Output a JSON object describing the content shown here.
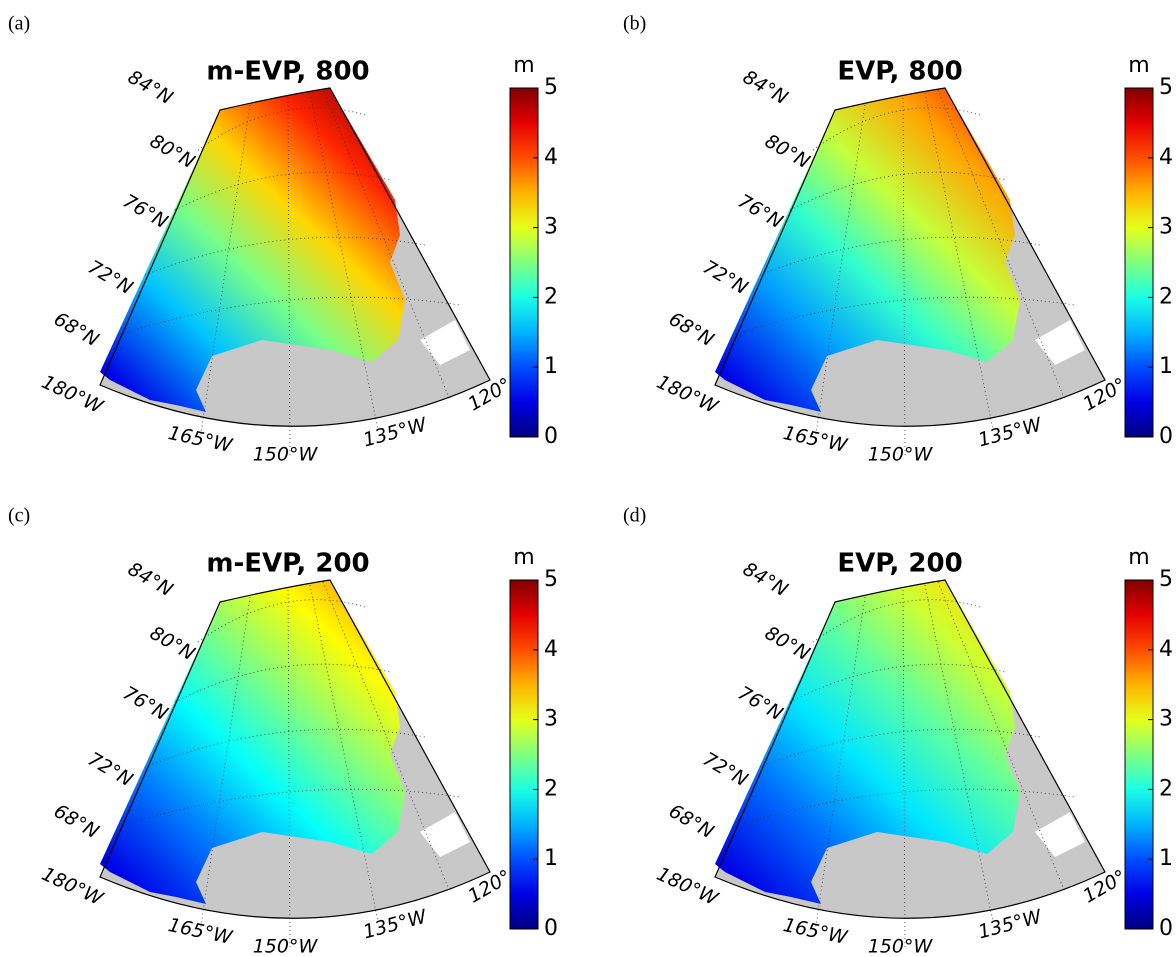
{
  "panels": [
    {
      "label": "(a)",
      "title": "m-EVP, 800",
      "lat_labels": [
        "84°N",
        "80°N",
        "76°N",
        "72°N",
        "68°N"
      ],
      "lon_labels": [
        "180°W",
        "165°W",
        "150°W",
        "135°W",
        "120°"
      ],
      "colorbar": {
        "label": "m",
        "colormap": "jet",
        "lim": [
          0,
          5
        ],
        "ticks": [
          0,
          1,
          2,
          3,
          4,
          5
        ]
      }
    },
    {
      "label": "(b)",
      "title": "EVP, 800",
      "lat_labels": [
        "84°N",
        "80°N",
        "76°N",
        "72°N",
        "68°N"
      ],
      "lon_labels": [
        "180°W",
        "165°W",
        "150°W",
        "135°W",
        "120°"
      ],
      "colorbar": {
        "label": "m",
        "colormap": "jet",
        "lim": [
          0,
          5
        ],
        "ticks": [
          0,
          1,
          2,
          3,
          4,
          5
        ]
      }
    },
    {
      "label": "(c)",
      "title": "m-EVP, 200",
      "lat_labels": [
        "84°N",
        "80°N",
        "76°N",
        "72°N",
        "68°N"
      ],
      "lon_labels": [
        "180°W",
        "165°W",
        "150°W",
        "135°W",
        "120°"
      ],
      "colorbar": {
        "label": "m",
        "colormap": "jet",
        "lim": [
          0,
          5
        ],
        "ticks": [
          0,
          1,
          2,
          3,
          4,
          5
        ]
      }
    },
    {
      "label": "(d)",
      "title": "EVP, 200",
      "lat_labels": [
        "84°N",
        "80°N",
        "76°N",
        "72°N",
        "68°N"
      ],
      "lon_labels": [
        "180°W",
        "165°W",
        "150°W",
        "135°W",
        "120°"
      ],
      "colorbar": {
        "label": "m",
        "colormap": "jet",
        "lim": [
          0,
          5
        ],
        "ticks": [
          0,
          1,
          2,
          3,
          4,
          5
        ]
      }
    }
  ]
}
